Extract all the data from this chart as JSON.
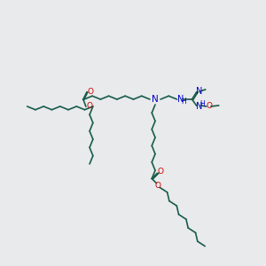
{
  "bg_color": "#e8eaeb",
  "line_color": "#1a5c4a",
  "o_color": "#cc0000",
  "n_color": "#0000cc",
  "line_width": 1.2,
  "font_size": 6.5,
  "fig_w": 3.0,
  "fig_h": 3.0,
  "dpi": 100,
  "xlim": [
    0,
    300
  ],
  "ylim": [
    0,
    300
  ]
}
